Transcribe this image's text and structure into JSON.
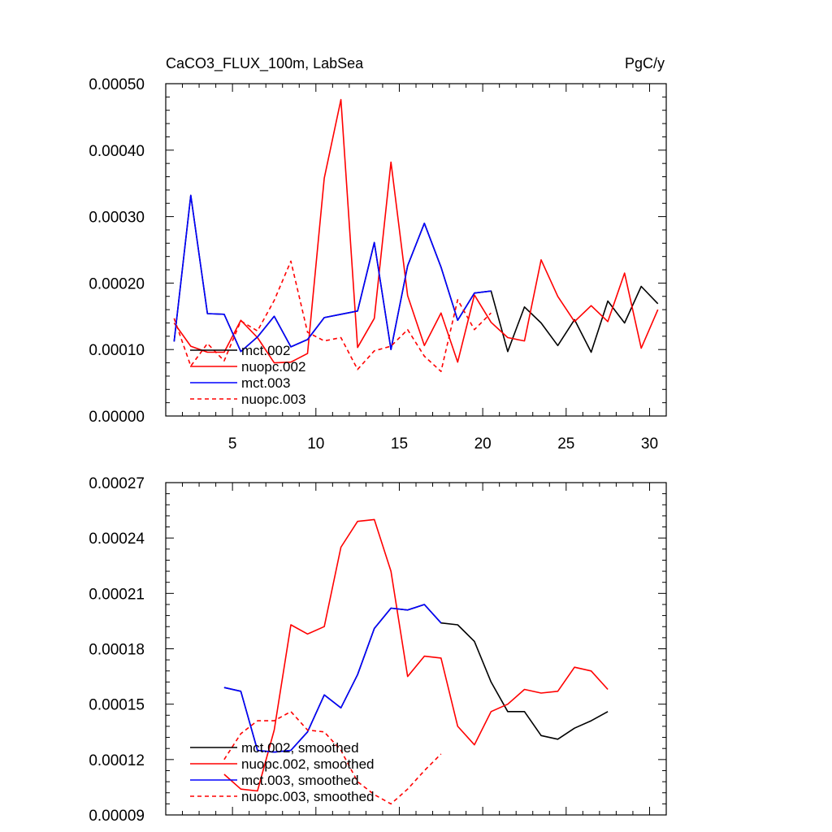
{
  "chart_data": [
    {
      "type": "line",
      "title": "CaCO3_FLUX_100m, LabSea",
      "units": "PgC/y",
      "xlim": [
        1,
        31
      ],
      "ylim": [
        0,
        0.0005
      ],
      "x_major_ticks": [
        5,
        10,
        15,
        20,
        25,
        30
      ],
      "x_tick_labels": [
        "5",
        "10",
        "15",
        "20",
        "25",
        "30"
      ],
      "y_major_ticks": [
        0,
        0.0001,
        0.0002,
        0.0003,
        0.0004,
        0.0005
      ],
      "y_tick_labels": [
        "0.00000",
        "0.00010",
        "0.00020",
        "0.00030",
        "0.00040",
        "0.00050"
      ],
      "legend_position": "bottom-left",
      "series": [
        {
          "name": "mct.002",
          "color": "#000000",
          "dash": "solid",
          "x": [
            1.5,
            2.5,
            3.5,
            4.5,
            5.5,
            6.5,
            7.5,
            8.5,
            9.5,
            10.5,
            11.5,
            12.5,
            13.5,
            14.5,
            15.5,
            16.5,
            17.5,
            18.5,
            19.5,
            20.5,
            21.5,
            22.5,
            23.5,
            24.5,
            25.5,
            26.5,
            27.5,
            28.5,
            29.5,
            30.5
          ],
          "y": [
            0.000112,
            0.000332,
            0.000154,
            0.000153,
            9.7e-05,
            0.000119,
            0.00015,
            0.000104,
            0.000115,
            0.000148,
            0.000153,
            0.000158,
            0.000261,
            0.0001,
            0.000226,
            0.00029,
            0.000224,
            0.000144,
            0.000185,
            0.000188,
            9.7e-05,
            0.000164,
            0.00014,
            0.000106,
            0.000145,
            9.6e-05,
            0.000173,
            0.00014,
            0.000195,
            0.000169
          ]
        },
        {
          "name": "nuopc.002",
          "color": "#ff0000",
          "dash": "solid",
          "x": [
            1.5,
            2.5,
            3.5,
            4.5,
            5.5,
            6.5,
            7.5,
            8.5,
            9.5,
            10.5,
            11.5,
            12.5,
            13.5,
            14.5,
            15.5,
            16.5,
            17.5,
            18.5,
            19.5,
            20.5,
            21.5,
            22.5,
            23.5,
            24.5,
            25.5,
            26.5,
            27.5,
            28.5,
            29.5,
            30.5
          ],
          "y": [
            0.00014,
            0.000105,
            9.6e-05,
            9.6e-05,
            0.000144,
            0.000118,
            8e-05,
            8.1e-05,
            9.4e-05,
            0.000358,
            0.000476,
            0.000103,
            0.000147,
            0.000382,
            0.000181,
            0.000106,
            0.000155,
            8.1e-05,
            0.000182,
            0.000141,
            0.000118,
            0.000113,
            0.000235,
            0.00018,
            0.000142,
            0.000166,
            0.000142,
            0.000215,
            0.000102,
            0.00016
          ]
        },
        {
          "name": "mct.003",
          "color": "#0000ff",
          "dash": "solid",
          "x": [
            1.5,
            2.5,
            3.5,
            4.5,
            5.5,
            6.5,
            7.5,
            8.5,
            9.5,
            10.5,
            11.5,
            12.5,
            13.5,
            14.5,
            15.5,
            16.5,
            17.5,
            18.5,
            19.5,
            20.5
          ],
          "y": [
            0.000112,
            0.000332,
            0.000154,
            0.000153,
            9.7e-05,
            0.000119,
            0.00015,
            0.000104,
            0.000115,
            0.000148,
            0.000153,
            0.000158,
            0.000261,
            0.0001,
            0.000226,
            0.00029,
            0.000224,
            0.000144,
            0.000185,
            0.000188
          ]
        },
        {
          "name": "nuopc.003",
          "color": "#ff0000",
          "dash": "dashed",
          "x": [
            1.5,
            2.5,
            3.5,
            4.5,
            5.5,
            6.5,
            7.5,
            8.5,
            9.5,
            10.5,
            11.5,
            12.5,
            13.5,
            14.5,
            15.5,
            16.5,
            17.5,
            18.5,
            19.5,
            20.5
          ],
          "y": [
            0.000147,
            7.5e-05,
            0.000109,
            8.3e-05,
            0.000143,
            0.000128,
            0.000174,
            0.000233,
            0.000126,
            0.000113,
            0.000118,
            7e-05,
            9.8e-05,
            0.000105,
            0.00013,
            9e-05,
            6.7e-05,
            0.000175,
            0.00013,
            0.000155
          ]
        }
      ]
    },
    {
      "type": "line",
      "xlim": [
        1,
        31
      ],
      "ylim": [
        9e-05,
        0.00027
      ],
      "x_major_ticks": [
        5,
        10,
        15,
        20,
        25,
        30
      ],
      "x_tick_labels": [],
      "y_major_ticks": [
        9e-05,
        0.00012,
        0.00015,
        0.00018,
        0.00021,
        0.00024,
        0.00027
      ],
      "y_tick_labels": [
        "0.00009",
        "0.00012",
        "0.00015",
        "0.00018",
        "0.00021",
        "0.00024",
        "0.00027"
      ],
      "legend_position": "bottom-left",
      "series": [
        {
          "name": "mct.002, smoothed",
          "color": "#000000",
          "dash": "solid",
          "x": [
            4.5,
            5.5,
            6.5,
            7.5,
            8.5,
            9.5,
            10.5,
            11.5,
            12.5,
            13.5,
            14.5,
            15.5,
            16.5,
            17.5,
            18.5,
            19.5,
            20.5,
            21.5,
            22.5,
            23.5,
            24.5,
            25.5,
            26.5,
            27.5
          ],
          "y": [
            0.000159,
            0.000157,
            0.000125,
            0.000124,
            0.000125,
            0.000135,
            0.000155,
            0.000148,
            0.000166,
            0.000191,
            0.000202,
            0.000201,
            0.000204,
            0.000194,
            0.000193,
            0.000184,
            0.000162,
            0.000146,
            0.000146,
            0.000133,
            0.000131,
            0.000137,
            0.000141,
            0.000146
          ]
        },
        {
          "name": "nuopc.002, smoothed",
          "color": "#ff0000",
          "dash": "solid",
          "x": [
            4.5,
            5.5,
            6.5,
            7.5,
            8.5,
            9.5,
            10.5,
            11.5,
            12.5,
            13.5,
            14.5,
            15.5,
            16.5,
            17.5,
            18.5,
            19.5,
            20.5,
            21.5,
            22.5,
            23.5,
            24.5,
            25.5,
            26.5,
            27.5
          ],
          "y": [
            0.000112,
            0.000104,
            0.000103,
            0.000136,
            0.000193,
            0.000188,
            0.000192,
            0.000235,
            0.000249,
            0.00025,
            0.000222,
            0.000165,
            0.000176,
            0.000175,
            0.000138,
            0.000128,
            0.000146,
            0.00015,
            0.000158,
            0.000156,
            0.000157,
            0.00017,
            0.000168,
            0.000158
          ]
        },
        {
          "name": "mct.003, smoothed",
          "color": "#0000ff",
          "dash": "solid",
          "x": [
            4.5,
            5.5,
            6.5,
            7.5,
            8.5,
            9.5,
            10.5,
            11.5,
            12.5,
            13.5,
            14.5,
            15.5,
            16.5,
            17.5
          ],
          "y": [
            0.000159,
            0.000157,
            0.000125,
            0.000124,
            0.000125,
            0.000135,
            0.000155,
            0.000148,
            0.000166,
            0.000191,
            0.000202,
            0.000201,
            0.000204,
            0.000194
          ]
        },
        {
          "name": "nuopc.003, smoothed",
          "color": "#ff0000",
          "dash": "dashed",
          "x": [
            4.5,
            5.5,
            6.5,
            7.5,
            8.5,
            9.5,
            10.5,
            11.5,
            12.5,
            13.5,
            14.5,
            15.5,
            16.5,
            17.5
          ],
          "y": [
            0.00012,
            0.000134,
            0.000141,
            0.000141,
            0.000146,
            0.000136,
            0.000135,
            0.000125,
            0.000108,
            0.000101,
            9.6e-05,
            0.000104,
            0.000114,
            0.000123
          ]
        }
      ]
    }
  ]
}
